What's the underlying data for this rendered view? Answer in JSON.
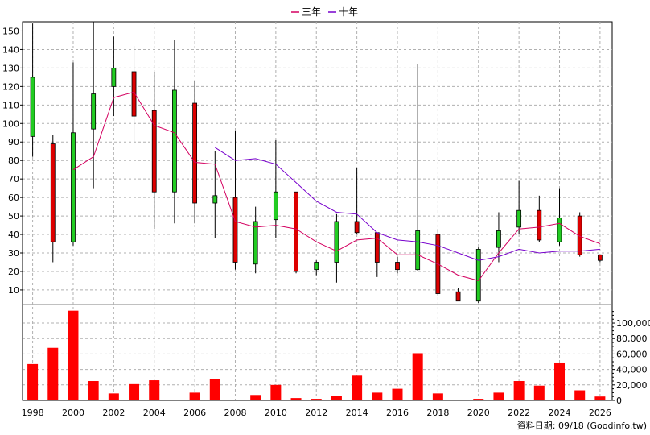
{
  "chart_data": {
    "type": "candlestick",
    "legend": [
      {
        "name": "三年",
        "color": "#d40060"
      },
      {
        "name": "十年",
        "color": "#7700cc"
      }
    ],
    "up_color": "#22cc22",
    "down_color": "#dd0000",
    "x_ticks": [
      "1998",
      "2000",
      "2002",
      "2004",
      "2006",
      "2008",
      "2010",
      "2012",
      "2014",
      "2016",
      "2018",
      "2020",
      "2022",
      "2024",
      "2026"
    ],
    "price_axis": {
      "ylim": [
        3,
        155
      ],
      "ticks": [
        10,
        20,
        30,
        40,
        50,
        60,
        70,
        80,
        90,
        100,
        110,
        120,
        130,
        140,
        150
      ]
    },
    "volume_axis": {
      "ylim": [
        0,
        124000
      ],
      "ticks": [
        0,
        20000,
        40000,
        60000,
        80000,
        100000
      ],
      "tick_labels": [
        "0",
        "20,000",
        "40,000",
        "60,000",
        "80,000",
        "100,000"
      ]
    },
    "candles": [
      {
        "year": 1998,
        "open": 93,
        "close": 125,
        "high": 154,
        "low": 82
      },
      {
        "year": 1999,
        "open": 89,
        "close": 36,
        "high": 94,
        "low": 25
      },
      {
        "year": 2000,
        "open": 36,
        "close": 95,
        "high": 133,
        "low": 34
      },
      {
        "year": 2001,
        "open": 97,
        "close": 116,
        "high": 155,
        "low": 65
      },
      {
        "year": 2002,
        "open": 120,
        "close": 130,
        "high": 147,
        "low": 104
      },
      {
        "year": 2003,
        "open": 128,
        "close": 104,
        "high": 142,
        "low": 90
      },
      {
        "year": 2004,
        "open": 107,
        "close": 63,
        "high": 128,
        "low": 43
      },
      {
        "year": 2005,
        "open": 63,
        "close": 118,
        "high": 145,
        "low": 46
      },
      {
        "year": 2006,
        "open": 111,
        "close": 57,
        "high": 123,
        "low": 46
      },
      {
        "year": 2007,
        "open": 57,
        "close": 61,
        "high": 85,
        "low": 38
      },
      {
        "year": 2008,
        "open": 60,
        "close": 25,
        "high": 96,
        "low": 21
      },
      {
        "year": 2009,
        "open": 24,
        "close": 47,
        "high": 55,
        "low": 19
      },
      {
        "year": 2010,
        "open": 48,
        "close": 63,
        "high": 91,
        "low": 38
      },
      {
        "year": 2011,
        "open": 63,
        "close": 20,
        "high": 63,
        "low": 19
      },
      {
        "year": 2012,
        "open": 21,
        "close": 25,
        "high": 26,
        "low": 18
      },
      {
        "year": 2013,
        "open": 25,
        "close": 47,
        "high": 51,
        "low": 14
      },
      {
        "year": 2014,
        "open": 47,
        "close": 41,
        "high": 76,
        "low": 40
      },
      {
        "year": 2015,
        "open": 41,
        "close": 25,
        "high": 41,
        "low": 17
      },
      {
        "year": 2016,
        "open": 25,
        "close": 21,
        "high": 28,
        "low": 19
      },
      {
        "year": 2017,
        "open": 21,
        "close": 42,
        "high": 132,
        "low": 20
      },
      {
        "year": 2018,
        "open": 40,
        "close": 8,
        "high": 43,
        "low": 7
      },
      {
        "year": 2019,
        "open": 9,
        "close": 4,
        "high": 11,
        "low": 4
      },
      {
        "year": 2020,
        "open": 4,
        "close": 32,
        "high": 33,
        "low": 3
      },
      {
        "year": 2021,
        "open": 33,
        "close": 42,
        "high": 52,
        "low": 25
      },
      {
        "year": 2022,
        "open": 44,
        "close": 53,
        "high": 69,
        "low": 40
      },
      {
        "year": 2023,
        "open": 53,
        "close": 37,
        "high": 61,
        "low": 36
      },
      {
        "year": 2024,
        "open": 36,
        "close": 49,
        "high": 65,
        "low": 34
      },
      {
        "year": 2025,
        "open": 50,
        "close": 29,
        "high": 52,
        "low": 28
      },
      {
        "year": 2026,
        "open": 29,
        "close": 26,
        "high": 29,
        "low": 25
      }
    ],
    "ma_series": [
      {
        "name": "三年",
        "color": "#d40060",
        "points": [
          [
            2000,
            75
          ],
          [
            2001,
            82
          ],
          [
            2002,
            114
          ],
          [
            2003,
            117
          ],
          [
            2004,
            99
          ],
          [
            2005,
            95
          ],
          [
            2006,
            79
          ],
          [
            2007,
            78
          ],
          [
            2008,
            47
          ],
          [
            2009,
            44
          ],
          [
            2010,
            45
          ],
          [
            2011,
            43
          ],
          [
            2012,
            36
          ],
          [
            2013,
            31
          ],
          [
            2014,
            37
          ],
          [
            2015,
            38
          ],
          [
            2016,
            29
          ],
          [
            2017,
            29
          ],
          [
            2018,
            24
          ],
          [
            2019,
            18
          ],
          [
            2020,
            15
          ],
          [
            2021,
            30
          ],
          [
            2022,
            43
          ],
          [
            2023,
            44
          ],
          [
            2024,
            46
          ],
          [
            2025,
            39
          ],
          [
            2026,
            35
          ]
        ]
      },
      {
        "name": "十年",
        "color": "#7700cc",
        "points": [
          [
            2007,
            87
          ],
          [
            2008,
            80
          ],
          [
            2009,
            81
          ],
          [
            2010,
            78
          ],
          [
            2011,
            68
          ],
          [
            2012,
            58
          ],
          [
            2013,
            52
          ],
          [
            2014,
            51
          ],
          [
            2015,
            41
          ],
          [
            2016,
            37
          ],
          [
            2017,
            36
          ],
          [
            2018,
            34
          ],
          [
            2019,
            30
          ],
          [
            2020,
            26
          ],
          [
            2021,
            28
          ],
          [
            2022,
            32
          ],
          [
            2023,
            30
          ],
          [
            2024,
            31
          ],
          [
            2025,
            31
          ],
          [
            2026,
            32
          ]
        ]
      }
    ],
    "volumes": [
      {
        "year": 1998,
        "value": 47000
      },
      {
        "year": 1999,
        "value": 68000
      },
      {
        "year": 2000,
        "value": 116000
      },
      {
        "year": 2001,
        "value": 25000
      },
      {
        "year": 2002,
        "value": 9000
      },
      {
        "year": 2003,
        "value": 21000
      },
      {
        "year": 2004,
        "value": 26000
      },
      {
        "year": 2005,
        "value": 0
      },
      {
        "year": 2006,
        "value": 10000
      },
      {
        "year": 2007,
        "value": 28000
      },
      {
        "year": 2008,
        "value": 0
      },
      {
        "year": 2009,
        "value": 7000
      },
      {
        "year": 2010,
        "value": 20000
      },
      {
        "year": 2011,
        "value": 3000
      },
      {
        "year": 2012,
        "value": 2000
      },
      {
        "year": 2013,
        "value": 6000
      },
      {
        "year": 2014,
        "value": 32000
      },
      {
        "year": 2015,
        "value": 10000
      },
      {
        "year": 2016,
        "value": 15000
      },
      {
        "year": 2017,
        "value": 61000
      },
      {
        "year": 2018,
        "value": 9000
      },
      {
        "year": 2019,
        "value": 0
      },
      {
        "year": 2020,
        "value": 2000
      },
      {
        "year": 2021,
        "value": 10000
      },
      {
        "year": 2022,
        "value": 25000
      },
      {
        "year": 2023,
        "value": 19000
      },
      {
        "year": 2024,
        "value": 49000
      },
      {
        "year": 2025,
        "value": 13000
      },
      {
        "year": 2026,
        "value": 5000
      }
    ],
    "grid": true
  },
  "footer": "資料日期: 09/18 (Goodinfo.tw)"
}
